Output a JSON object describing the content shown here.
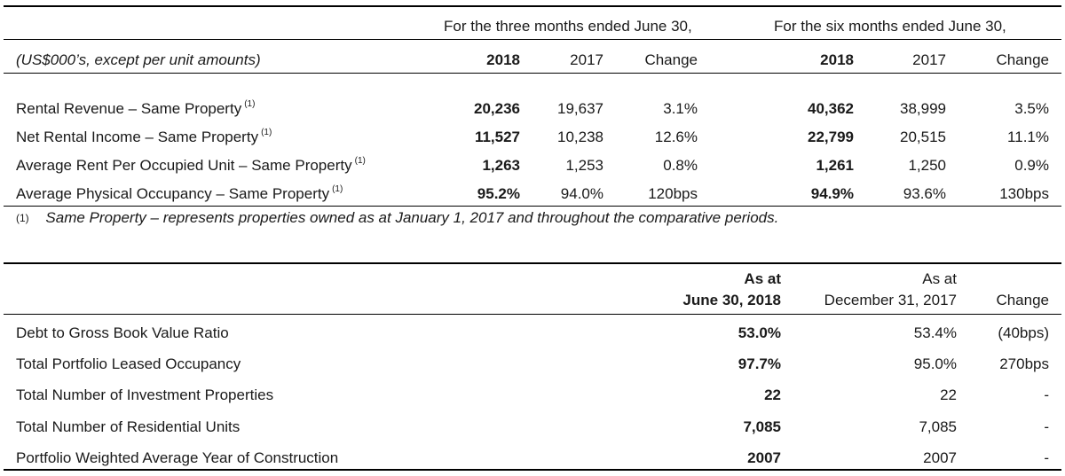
{
  "table1": {
    "group_three_months": "For the three months ended June 30,",
    "group_six_months": "For the six months ended June 30,",
    "units_label": "(US$000’s, except per unit amounts)",
    "col_headers": {
      "q_2018": "2018",
      "q_2017": "2017",
      "q_change": "Change",
      "h_2018": "2018",
      "h_2017": "2017",
      "h_change": "Change"
    },
    "footnote_marker": "(1)",
    "rows": [
      {
        "label": "Rental Revenue – Same Property",
        "q_2018": "20,236",
        "q_2017": "19,637",
        "q_change": "3.1%",
        "h_2018": "40,362",
        "h_2017": "38,999",
        "h_change": "3.5%"
      },
      {
        "label": "Net Rental Income – Same Property",
        "q_2018": "11,527",
        "q_2017": "10,238",
        "q_change": "12.6%",
        "h_2018": "22,799",
        "h_2017": "20,515",
        "h_change": "11.1%"
      },
      {
        "label": "Average Rent Per Occupied Unit – Same Property",
        "q_2018": "1,263",
        "q_2017": "1,253",
        "q_change": "0.8%",
        "h_2018": "1,261",
        "h_2017": "1,250",
        "h_change": "0.9%"
      },
      {
        "label": "Average Physical Occupancy – Same Property",
        "q_2018": "95.2%",
        "q_2017": "94.0%",
        "q_change": "120bps",
        "h_2018": "94.9%",
        "h_2017": "93.6%",
        "h_change": "130bps"
      }
    ],
    "footnote": {
      "marker": "(1)",
      "text": "Same Property – represents properties owned as at January 1, 2017 and throughout the comparative periods."
    }
  },
  "table2": {
    "col_a_line1": "As at",
    "col_a_line2": "June 30, 2018",
    "col_b_line1": "As at",
    "col_b_line2": "December 31, 2017",
    "col_change": "Change",
    "rows": [
      {
        "label": "Debt to Gross Book Value Ratio",
        "a": "53.0%",
        "b": "53.4%",
        "change": "(40bps)"
      },
      {
        "label": "Total Portfolio Leased Occupancy",
        "a": "97.7%",
        "b": "95.0%",
        "change": "270bps"
      },
      {
        "label": "Total Number of Investment Properties",
        "a": "22",
        "b": "22",
        "change": "-"
      },
      {
        "label": "Total Number of Residential Units",
        "a": "7,085",
        "b": "7,085",
        "change": "-"
      },
      {
        "label": "Portfolio Weighted Average Year of Construction",
        "a": "2007",
        "b": "2007",
        "change": "-"
      }
    ]
  }
}
